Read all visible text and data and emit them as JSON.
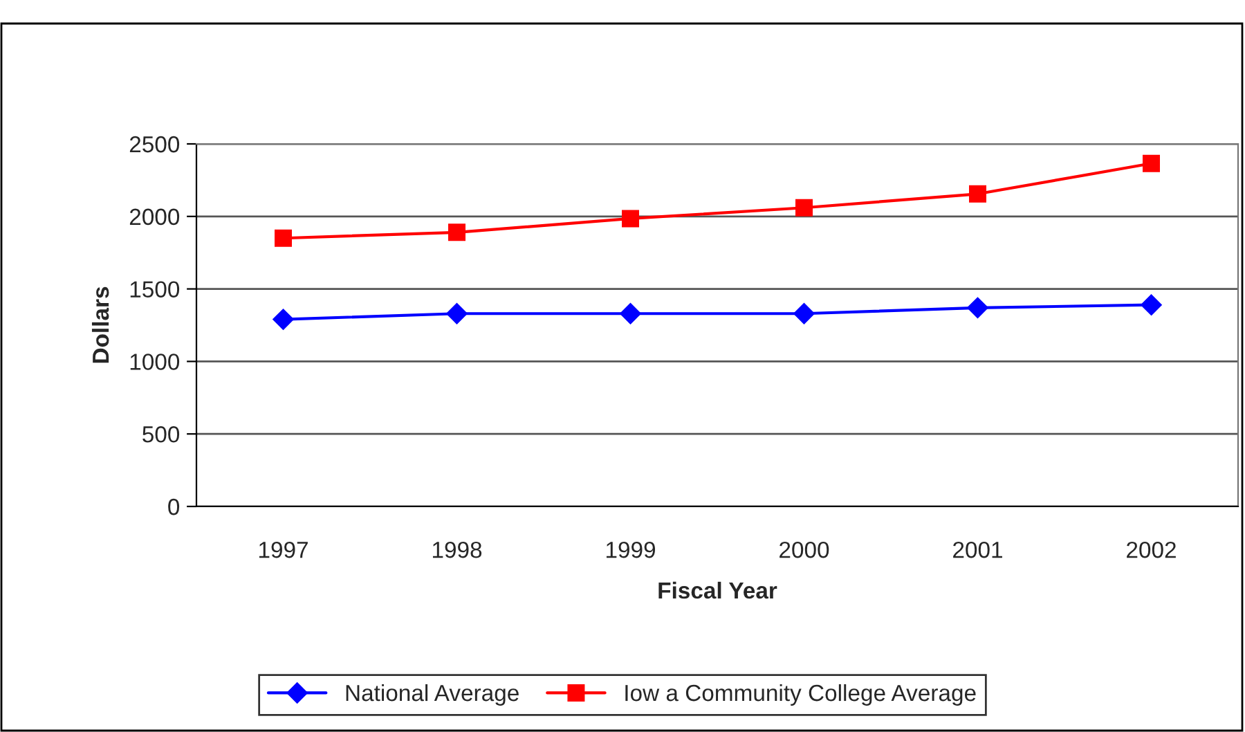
{
  "chart_data": {
    "type": "line",
    "xlabel": "Fiscal Year",
    "ylabel": "Dollars",
    "categories": [
      "1997",
      "1998",
      "1999",
      "2000",
      "2001",
      "2002"
    ],
    "series": [
      {
        "name": "National Average",
        "color": "#0000ff",
        "marker": "diamond",
        "values": [
          1290,
          1330,
          1330,
          1330,
          1370,
          1390
        ]
      },
      {
        "name": "Iow a Community College Average",
        "color": "#ff0000",
        "marker": "square",
        "values": [
          1850,
          1890,
          1985,
          2060,
          2155,
          2365
        ]
      }
    ],
    "ylim": [
      0,
      2500
    ],
    "yticks": [
      0,
      500,
      1000,
      1500,
      2000,
      2500
    ],
    "grid": "y",
    "legend": "bottom"
  }
}
